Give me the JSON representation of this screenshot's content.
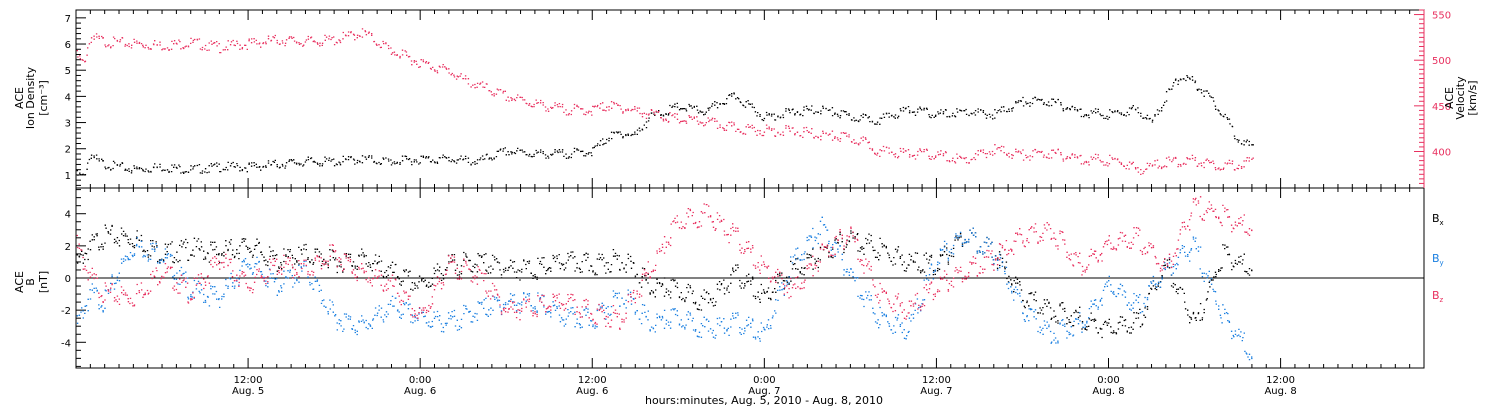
{
  "chart_data": [
    {
      "type": "scatter",
      "panel": "top",
      "ylabel_lines": [
        "ACE",
        "Ion Density",
        "[cm⁻³]"
      ],
      "ylabel2_lines": [
        "ACE",
        "Velocity",
        "[km/s]"
      ],
      "ylim": [
        0.5,
        7.3
      ],
      "ylim2": [
        360,
        555
      ],
      "yticks": [
        "1",
        "2",
        "3",
        "4",
        "5",
        "6",
        "7"
      ],
      "y2ticks": [
        "400",
        "450",
        "500",
        "550"
      ],
      "series": [
        {
          "color": "#000000",
          "axis": "left",
          "hours": [
            0,
            0.5,
            1,
            1.5,
            2,
            3,
            4,
            6,
            8,
            10,
            12,
            14,
            16,
            18,
            20,
            22,
            24,
            26,
            28,
            30,
            32,
            34,
            36,
            37,
            38,
            39,
            40,
            42,
            44,
            45,
            46,
            47,
            48,
            50,
            52,
            54,
            56,
            58,
            60,
            62,
            64,
            66,
            68,
            70,
            72,
            74,
            75,
            76,
            77,
            78,
            79,
            80,
            81,
            82
          ],
          "values": [
            1.0,
            0.9,
            1.8,
            1.5,
            1.4,
            1.3,
            1.2,
            1.3,
            1.2,
            1.3,
            1.3,
            1.4,
            1.5,
            1.5,
            1.6,
            1.5,
            1.6,
            1.6,
            1.5,
            1.9,
            1.8,
            1.8,
            1.9,
            2.4,
            2.6,
            2.5,
            3.2,
            3.6,
            3.4,
            3.8,
            4.0,
            3.6,
            3.2,
            3.4,
            3.5,
            3.2,
            3.1,
            3.5,
            3.3,
            3.4,
            3.3,
            3.8,
            3.8,
            3.4,
            3.3,
            3.5,
            3.0,
            4.0,
            4.8,
            4.5,
            4.0,
            3.3,
            2.4,
            2.0
          ]
        },
        {
          "color": "#e8305f",
          "axis": "right",
          "hours": [
            0,
            0.5,
            1,
            2,
            4,
            6,
            8,
            10,
            12,
            14,
            16,
            18,
            20,
            22,
            24,
            26,
            27,
            28,
            30,
            32,
            34,
            36,
            37,
            38,
            40,
            42,
            44,
            46,
            48,
            50,
            52,
            54,
            55,
            56,
            58,
            60,
            62,
            64,
            66,
            68,
            70,
            72,
            73,
            74,
            76,
            78,
            80,
            82
          ],
          "values": [
            505,
            495,
            525,
            520,
            518,
            516,
            519,
            514,
            518,
            522,
            520,
            522,
            530,
            510,
            497,
            488,
            478,
            472,
            460,
            452,
            446,
            445,
            450,
            448,
            441,
            435,
            432,
            425,
            423,
            422,
            418,
            414,
            410,
            400,
            398,
            396,
            390,
            402,
            396,
            398,
            392,
            390,
            388,
            380,
            388,
            390,
            384,
            388
          ]
        }
      ]
    },
    {
      "type": "scatter",
      "panel": "bottom",
      "ylabel_lines": [
        "ACE",
        "B",
        "[nT]"
      ],
      "ylim": [
        -5.6,
        5.6
      ],
      "yticks": [
        "-4",
        "-2",
        "0",
        "2",
        "4"
      ],
      "series_labels": [
        {
          "main": "B",
          "sub": "x",
          "color": "#000000"
        },
        {
          "main": "B",
          "sub": "y",
          "color": "#1a7fe0"
        },
        {
          "main": "B",
          "sub": "z",
          "color": "#e8305f"
        }
      ],
      "series": [
        {
          "color": "#000000",
          "hours": [
            0,
            1,
            2,
            4,
            6,
            8,
            10,
            12,
            14,
            16,
            18,
            20,
            22,
            24,
            26,
            28,
            30,
            32,
            34,
            36,
            38,
            40,
            42,
            44,
            46,
            48,
            50,
            52,
            54,
            56,
            58,
            60,
            62,
            64,
            66,
            68,
            70,
            72,
            74,
            76,
            78,
            80,
            82
          ],
          "values": [
            0.8,
            2.0,
            2.6,
            2.5,
            1.5,
            1.8,
            1.6,
            2.0,
            1.0,
            1.5,
            1.0,
            1.2,
            0.3,
            -0.5,
            0.8,
            1.0,
            0.6,
            0.5,
            1.0,
            0.8,
            1.2,
            -0.5,
            -0.8,
            -1.5,
            0.2,
            -1.2,
            0.5,
            1.5,
            2.5,
            1.8,
            1.0,
            0.8,
            2.8,
            1.5,
            -1.2,
            -2.0,
            -2.5,
            -3.2,
            -2.8,
            0.8,
            -3.0,
            1.5,
            0.5
          ]
        },
        {
          "color": "#1a7fe0",
          "hours": [
            0,
            1,
            2,
            3,
            4,
            6,
            8,
            10,
            12,
            14,
            16,
            18,
            20,
            22,
            24,
            26,
            28,
            30,
            32,
            34,
            36,
            38,
            40,
            42,
            44,
            46,
            48,
            50,
            52,
            54,
            56,
            58,
            60,
            62,
            64,
            66,
            68,
            70,
            72,
            74,
            76,
            78,
            80,
            81,
            82
          ],
          "values": [
            -3.0,
            -1.0,
            -1.5,
            0.5,
            2.0,
            1.5,
            -0.8,
            -1.2,
            1.0,
            -0.5,
            0.5,
            -2.5,
            -3.0,
            -1.8,
            -2.5,
            -2.8,
            -2.0,
            -1.5,
            -1.5,
            -2.5,
            -2.6,
            -1.0,
            -2.8,
            -2.5,
            -3.2,
            -2.8,
            -3.5,
            1.0,
            3.2,
            0.2,
            -2.5,
            -3.2,
            1.2,
            2.8,
            1.5,
            -2.0,
            -3.5,
            -2.8,
            -0.5,
            -1.8,
            0.5,
            2.0,
            -2.5,
            -3.5,
            -5.0
          ]
        },
        {
          "color": "#e8305f",
          "hours": [
            0,
            1,
            2,
            4,
            6,
            8,
            10,
            12,
            14,
            16,
            18,
            20,
            22,
            24,
            26,
            28,
            30,
            32,
            34,
            36,
            38,
            40,
            42,
            44,
            46,
            48,
            50,
            52,
            54,
            56,
            58,
            60,
            62,
            64,
            66,
            68,
            70,
            72,
            74,
            76,
            78,
            80,
            82
          ],
          "values": [
            2.0,
            0.0,
            -1.0,
            -1.2,
            0.5,
            -1.0,
            1.2,
            -0.5,
            0.8,
            0.5,
            1.5,
            0.2,
            -0.5,
            -2.5,
            0.8,
            0.2,
            -2.0,
            -1.8,
            -1.5,
            -2.2,
            -2.5,
            0.5,
            3.5,
            4.0,
            2.5,
            0.5,
            -0.8,
            1.5,
            2.8,
            -1.0,
            -2.0,
            -0.5,
            0.5,
            1.2,
            2.5,
            3.0,
            0.8,
            2.0,
            2.5,
            0.5,
            4.5,
            3.8,
            3.0
          ]
        }
      ]
    }
  ],
  "x_axis": {
    "ticks": [
      {
        "hours": 12,
        "time": "12:00",
        "date": "Aug. 5"
      },
      {
        "hours": 24,
        "time": "0:00",
        "date": "Aug. 6"
      },
      {
        "hours": 36,
        "time": "12:00",
        "date": "Aug. 6"
      },
      {
        "hours": 48,
        "time": "0:00",
        "date": "Aug. 7"
      },
      {
        "hours": 60,
        "time": "12:00",
        "date": "Aug. 7"
      },
      {
        "hours": 72,
        "time": "0:00",
        "date": "Aug. 8"
      },
      {
        "hours": 84,
        "time": "12:00",
        "date": "Aug. 8"
      }
    ],
    "xlim_hours": [
      0,
      94
    ],
    "xlabel": "hours:minutes, Aug.  5, 2010 - Aug.  8, 2010"
  },
  "colors": {
    "density": "#000000",
    "velocity": "#e8305f",
    "bx": "#000000",
    "by": "#1a7fe0",
    "bz": "#e8305f",
    "axis": "#000000"
  }
}
